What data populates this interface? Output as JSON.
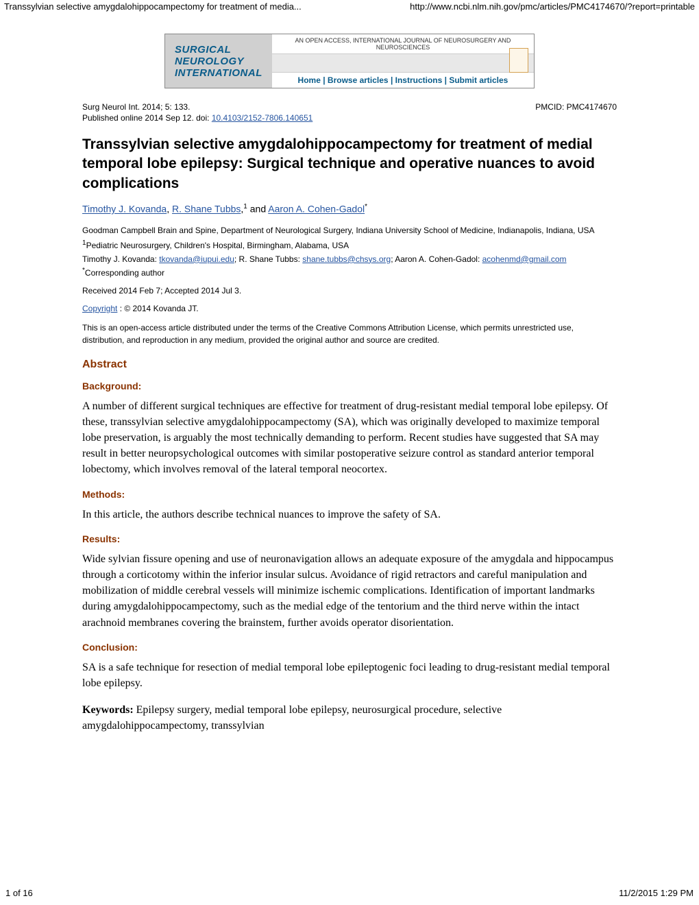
{
  "header": {
    "left": "Transsylvian selective amygdalohippocampectomy for treatment of media...",
    "right": "http://www.ncbi.nlm.nih.gov/pmc/articles/PMC4174670/?report=printable"
  },
  "banner": {
    "line1": "SURGICAL",
    "line2": "NEUROLOGY",
    "line3": "INTERNATIONAL",
    "top_text": "AN OPEN ACCESS, INTERNATIONAL JOURNAL OF NEUROSURGERY AND NEUROSCIENCES",
    "bottom_text": "Home | Browse articles | Instructions | Submit articles"
  },
  "citation": {
    "left": "Surg Neurol Int. 2014; 5: 133.",
    "right": "PMCID: PMC4174670",
    "pub_prefix": "Published online 2014 Sep 12. doi:  ",
    "doi": "10.4103/2152-7806.140651"
  },
  "title": "Transsylvian selective amygdalohippocampectomy for treatment of medial temporal lobe epilepsy: Surgical technique and operative nuances to avoid complications",
  "authors": {
    "a1": "Timothy J. Kovanda",
    "sep1": ", ",
    "a2": "R. Shane Tubbs",
    "sep2": ",",
    "sup1": "1",
    "sep3": " and ",
    "a3": "Aaron A. Cohen-Gadol",
    "sup2": "*"
  },
  "affiliations": {
    "l1": "Goodman Campbell Brain and Spine, Department of Neurological Surgery, Indiana University School of Medicine, Indianapolis, Indiana, USA",
    "l2_sup": "1",
    "l2": "Pediatric Neurosurgery, Children's Hospital, Birmingham, Alabama, USA",
    "l3_prefix1": "Timothy J. Kovanda: ",
    "l3_email1": "tkovanda@iupui.edu",
    "l3_sep1": "; R. Shane Tubbs: ",
    "l3_email2": "shane.tubbs@chsys.org",
    "l3_sep2": "; Aaron A. Cohen-Gadol: ",
    "l3_email3": "acohenmd@gmail.com",
    "l4_sup": "*",
    "l4": "Corresponding author"
  },
  "dates": "Received 2014 Feb 7; Accepted 2014 Jul 3.",
  "copyright": {
    "link": "Copyright",
    "rest": " : © 2014 Kovanda JT."
  },
  "license": "This is an open-access article distributed under the terms of the Creative Commons Attribution License, which permits unrestricted use, distribution, and reproduction in any medium, provided the original author and source are credited.",
  "abstract": {
    "heading": "Abstract",
    "background_h": "Background:",
    "background_t": "A number of different surgical techniques are effective for treatment of drug-resistant medial temporal lobe epilepsy. Of these, transsylvian selective amygdalohippocampectomy (SA), which was originally developed to maximize temporal lobe preservation, is arguably the most technically demanding to perform. Recent studies have suggested that SA may result in better neuropsychological outcomes with similar postoperative seizure control as standard anterior temporal lobectomy, which involves removal of the lateral temporal neocortex.",
    "methods_h": "Methods:",
    "methods_t": "In this article, the authors describe technical nuances to improve the safety of SA.",
    "results_h": "Results:",
    "results_t": "Wide sylvian fissure opening and use of neuronavigation allows an adequate exposure of the amygdala and hippocampus through a corticotomy within the inferior insular sulcus. Avoidance of rigid retractors and careful manipulation and mobilization of middle cerebral vessels will minimize ischemic complications. Identification of important landmarks during amygdalohippocampectomy, such as the medial edge of the tentorium and the third nerve within the intact arachnoid membranes covering the brainstem, further avoids operator disorientation.",
    "conclusion_h": "Conclusion:",
    "conclusion_t": "SA is a safe technique for resection of medial temporal lobe epileptogenic foci leading to drug-resistant medial temporal lobe epilepsy.",
    "keywords_label": "Keywords: ",
    "keywords": "Epilepsy surgery, medial temporal lobe epilepsy, neurosurgical procedure, selective amygdalohippocampectomy, transsylvian"
  },
  "footer": {
    "left": "1 of 16",
    "right": "11/2/2015 1:29 PM"
  }
}
